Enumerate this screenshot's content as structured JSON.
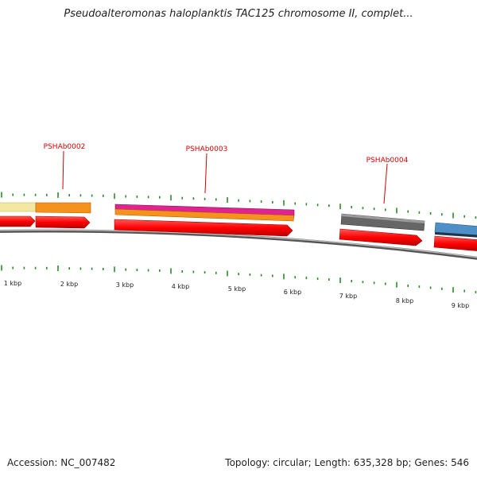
{
  "header": {
    "title": "Pseudoalteromonas haloplanktis TAC125 chromosome II, complet..."
  },
  "footer": {
    "accession": "Accession: NC_007482",
    "summary": "Topology: circular; Length: 635,328 bp; Genes: 546"
  },
  "scale": {
    "tick_labels": [
      "1 kbp",
      "2 kbp",
      "3 kbp",
      "4 kbp",
      "5 kbp",
      "6 kbp",
      "7 kbp",
      "8 kbp",
      "9 kbp"
    ]
  },
  "genes": [
    {
      "name": "PSHAb0002"
    },
    {
      "name": "PSHAb0003"
    },
    {
      "name": "PSHAb0004"
    }
  ],
  "colors": {
    "label": "#d40000",
    "arrow": "#ff0000",
    "tick": "#2a8a2a",
    "backbone": "#888888",
    "feature_yellow": "#f2e8a2",
    "feature_orange": "#f5921e",
    "feature_magenta": "#e0238f",
    "feature_gray": "#666666",
    "feature_blue": "#4f8fc7"
  }
}
